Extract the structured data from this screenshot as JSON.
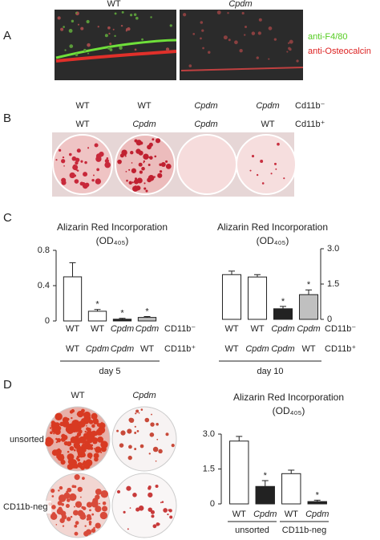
{
  "panel_labels": [
    "A",
    "B",
    "C",
    "D"
  ],
  "panel_a": {
    "columns": [
      "WT",
      "Cpdm"
    ],
    "legend": [
      "anti-F4/80",
      "anti-Osteocalcin"
    ]
  },
  "panel_b": {
    "row1": [
      "WT",
      "WT",
      "Cpdm",
      "Cpdm"
    ],
    "row1_name": "Cd11b⁻",
    "row2": [
      "WT",
      "Cpdm",
      "Cpdm",
      "WT"
    ],
    "row2_name": "Cd11b⁺"
  },
  "panel_d": {
    "columns": [
      "WT",
      "Cpdm"
    ],
    "rows": [
      "unsorted",
      "CD11b-neg"
    ]
  },
  "chart_data": [
    {
      "type": "bar",
      "title": "Alizarin Red Incorporation",
      "subtitle": "(OD₄₀₅)",
      "categories": [
        "WT",
        "WT",
        "Cpdm",
        "Cpdm"
      ],
      "categories_italic": [
        false,
        false,
        true,
        true
      ],
      "categories_row2": [
        "WT",
        "Cpdm",
        "Cpdm",
        "WT"
      ],
      "categories_row2_italic": [
        false,
        true,
        true,
        false
      ],
      "row_names": [
        "CD11b⁻",
        "CD11b⁺"
      ],
      "group_label": "day 5",
      "values": [
        0.5,
        0.11,
        0.02,
        0.04
      ],
      "errors": [
        0.16,
        0.02,
        0.01,
        0.01
      ],
      "colors": [
        "#ffffff",
        "#ffffff",
        "#222222",
        "#c0c0c0"
      ],
      "star_labels": [
        null,
        "*",
        "*",
        "*"
      ],
      "ylim": [
        0,
        0.8
      ],
      "yticks": [
        0,
        0.4,
        0.8
      ],
      "axis_side": "left"
    },
    {
      "type": "bar",
      "title": "Alizarin Red Incorporation",
      "subtitle": "(OD₄₀₅)",
      "categories": [
        "WT",
        "WT",
        "Cpdm",
        "Cpdm"
      ],
      "categories_italic": [
        false,
        false,
        true,
        true
      ],
      "categories_row2": [
        "WT",
        "Cpdm",
        "Cpdm",
        "WT"
      ],
      "categories_row2_italic": [
        false,
        true,
        true,
        false
      ],
      "row_names": [
        "CD11b⁻",
        "CD11b⁺"
      ],
      "group_label": "day 10",
      "values": [
        1.9,
        1.8,
        0.45,
        1.05
      ],
      "errors": [
        0.15,
        0.1,
        0.1,
        0.2
      ],
      "colors": [
        "#ffffff",
        "#ffffff",
        "#222222",
        "#c0c0c0"
      ],
      "star_labels": [
        null,
        null,
        "*",
        "*"
      ],
      "ylim": [
        0,
        3
      ],
      "yticks": [
        0,
        1.5,
        {
          "value": 3,
          "label": "3.0"
        }
      ],
      "axis_side": "right"
    },
    {
      "type": "bar",
      "title": "Alizarin Red Incorporation",
      "subtitle": "(OD₄₀₅)",
      "categories": [
        "WT",
        "Cpdm",
        "WT",
        "Cpdm"
      ],
      "categories_italic": [
        false,
        true,
        false,
        true
      ],
      "group_labels": [
        "unsorted",
        "CD11b-neg"
      ],
      "values": [
        2.7,
        0.75,
        1.3,
        0.1
      ],
      "errors": [
        0.2,
        0.25,
        0.15,
        0.06
      ],
      "colors": [
        "#ffffff",
        "#222222",
        "#ffffff",
        "#222222"
      ],
      "star_labels": [
        null,
        "*",
        null,
        "*"
      ],
      "ylim": [
        0,
        3
      ],
      "yticks": [
        0,
        1.5,
        {
          "value": 3,
          "label": "3.0"
        }
      ],
      "axis_side": "left"
    }
  ]
}
